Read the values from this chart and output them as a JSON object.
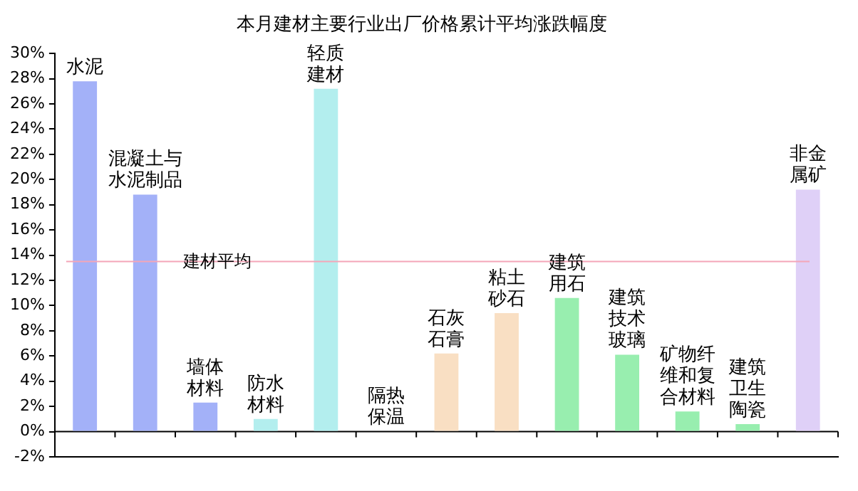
{
  "chart_data": {
    "type": "bar",
    "title": "本月建材主要行业出厂价格累计平均涨跌幅度",
    "categories": [
      "水泥",
      "混凝土与水泥制品",
      "墙体材料",
      "防水材料",
      "轻质建材",
      "隔热保温",
      "石灰石膏",
      "粘土砂石",
      "建筑用石",
      "建筑技术玻璃",
      "矿物纤维和复合材料",
      "建筑卫生陶瓷",
      "非金属矿"
    ],
    "values": [
      27.8,
      18.8,
      2.3,
      1.0,
      27.2,
      0,
      6.2,
      9.4,
      10.6,
      6.1,
      1.6,
      0.6,
      19.2
    ],
    "colors": [
      "#a3b1f8",
      "#a3b1f8",
      "#a3b1f8",
      "#b3eeee",
      "#b3eeee",
      "#b3eeee",
      "#f9dfc3",
      "#f9dfc3",
      "#98eeaf",
      "#98eeaf",
      "#98eeaf",
      "#98eeaf",
      "#dfd0f7"
    ],
    "ylim": [
      -2,
      30
    ],
    "yticks": [
      {
        "value": -2,
        "label": "-2%"
      },
      {
        "value": 0,
        "label": "0%"
      },
      {
        "value": 2,
        "label": "2%"
      },
      {
        "value": 4,
        "label": "4%"
      },
      {
        "value": 6,
        "label": "6%"
      },
      {
        "value": 8,
        "label": "8%"
      },
      {
        "value": 10,
        "label": "10%"
      },
      {
        "value": 12,
        "label": "12%"
      },
      {
        "value": 14,
        "label": "14%"
      },
      {
        "value": 16,
        "label": "16%"
      },
      {
        "value": 18,
        "label": "18%"
      },
      {
        "value": 20,
        "label": "20%"
      },
      {
        "value": 22,
        "label": "22%"
      },
      {
        "value": 24,
        "label": "24%"
      },
      {
        "value": 26,
        "label": "26%"
      },
      {
        "value": 28,
        "label": "28%"
      },
      {
        "value": 30,
        "label": "30%"
      }
    ],
    "ref_lines": [
      {
        "axis": "y",
        "value": 13.5,
        "label": "建材平均",
        "color": "#f4a6b8"
      }
    ],
    "grid": false,
    "legend": false,
    "tick_labels": "y"
  }
}
